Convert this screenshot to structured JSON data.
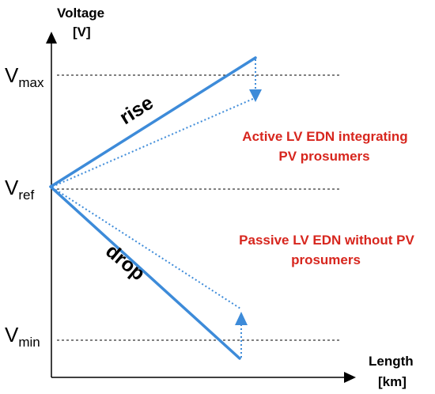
{
  "colors": {
    "line": "#3d8bd9",
    "annotation": "#d7261e",
    "axis": "#000000",
    "guide": "#000000"
  },
  "axes": {
    "y_title_line1": "Voltage",
    "y_title_line2": "[V]",
    "x_title_line1": "Length",
    "x_title_line2": "[km]"
  },
  "levels": {
    "vmax": {
      "main": "V",
      "sub": "max"
    },
    "vref": {
      "main": "V",
      "sub": "ref"
    },
    "vmin": {
      "main": "V",
      "sub": "min"
    }
  },
  "slope_labels": {
    "rise": "rise",
    "drop": "drop"
  },
  "annotations": {
    "active_line1": "Active LV EDN integrating",
    "active_line2": "PV prosumers",
    "passive_line1": "Passive LV EDN without PV",
    "passive_line2": "prosumers"
  }
}
